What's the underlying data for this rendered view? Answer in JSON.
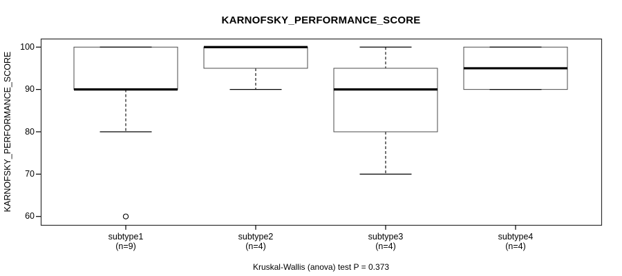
{
  "chart_data": {
    "type": "boxplot",
    "title": "KARNOFSKY_PERFORMANCE_SCORE",
    "ylabel": "KARNOFSKY_PERFORMANCE_SCORE",
    "xlabel": "",
    "caption": "Kruskal-Wallis (anova) test P = 0.373",
    "yticks": [
      60,
      70,
      80,
      90,
      100
    ],
    "ylim": [
      58,
      102
    ],
    "grid": false,
    "legend": null,
    "groups": [
      {
        "label": "subtype1",
        "sublabel": "(n=9)",
        "n": 9,
        "whisker_low": 80,
        "q1": 90,
        "median": 90,
        "q3": 100,
        "whisker_high": 100,
        "outliers": [
          60
        ]
      },
      {
        "label": "subtype2",
        "sublabel": "(n=4)",
        "n": 4,
        "whisker_low": 90,
        "q1": 95,
        "median": 100,
        "q3": 100,
        "whisker_high": 100,
        "outliers": []
      },
      {
        "label": "subtype3",
        "sublabel": "(n=4)",
        "n": 4,
        "whisker_low": 70,
        "q1": 80,
        "median": 90,
        "q3": 95,
        "whisker_high": 100,
        "outliers": []
      },
      {
        "label": "subtype4",
        "sublabel": "(n=4)",
        "n": 4,
        "whisker_low": 90,
        "q1": 90,
        "median": 95,
        "q3": 100,
        "whisker_high": 100,
        "outliers": []
      }
    ],
    "colors": {
      "background": "#ffffff",
      "box_fill": "#ffffff",
      "box_border": "#4a4a4a",
      "plot_border": "#2e2e2e",
      "line": "#000000"
    }
  }
}
